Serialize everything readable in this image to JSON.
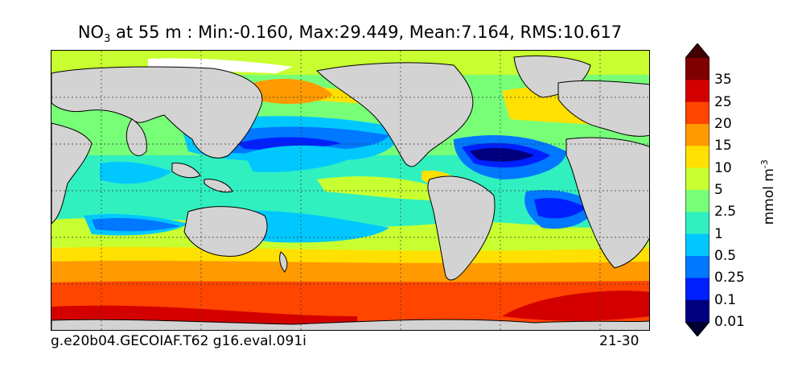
{
  "title": {
    "prefix": "NO",
    "subscript": "3",
    "text": " at 55 m : Min:-0.160, Max:29.449, Mean:7.164, RMS:10.617"
  },
  "footer": {
    "left": "g.e20b04.GECOIAF.T62 g16.eval.091i",
    "right": "21-30"
  },
  "colorbar": {
    "units": "mmol m",
    "units_exp": "-3",
    "levels": [
      "35",
      "25",
      "20",
      "15",
      "10",
      "5",
      "2.5",
      "1",
      "0.5",
      "0.25",
      "0.1",
      "0.01"
    ],
    "colors": [
      "#7f0000",
      "#d40000",
      "#ff4500",
      "#ff9a00",
      "#ffe000",
      "#c8ff30",
      "#78ff78",
      "#30f0c0",
      "#00c8ff",
      "#0078ff",
      "#0020ff",
      "#00007f"
    ],
    "top_arrow_color": "#400000",
    "bottom_arrow_color": "#000030"
  },
  "map": {
    "land_color": "#d3d3d3",
    "coast_color": "#000000",
    "grid_style": "dotted"
  }
}
